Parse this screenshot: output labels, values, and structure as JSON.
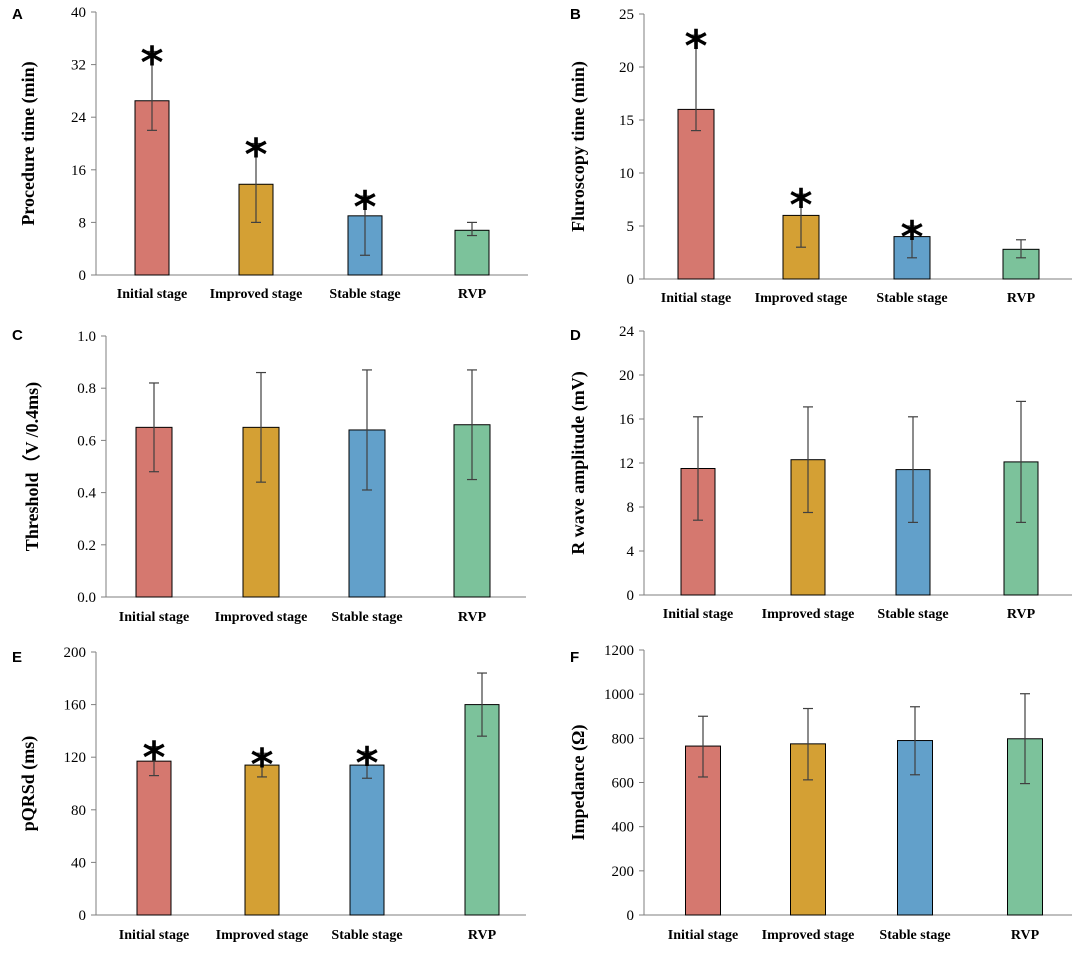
{
  "colors": {
    "Initial stage": "#d5786f",
    "Improved stage": "#d4a034",
    "Stable stage": "#62a0ca",
    "RVP": "#7cc29b"
  },
  "significance_marker": "*",
  "chart_data": [
    {
      "panel": "A",
      "type": "bar",
      "categories": [
        "Initial stage",
        "Improved stage",
        "Stable stage",
        "RVP"
      ],
      "values": [
        26.5,
        13.8,
        9.0,
        6.8
      ],
      "error_low": [
        22.0,
        8.0,
        3.0,
        6.0
      ],
      "error_high": [
        34.0,
        20.0,
        12.0,
        8.0
      ],
      "significant": [
        true,
        true,
        true,
        false
      ],
      "ylabel": "Procedure time (min)",
      "ylim": [
        0,
        40
      ],
      "yticks": [
        0,
        8,
        16,
        24,
        32,
        40
      ],
      "ytick_labels": [
        "0",
        "8",
        "16",
        "24",
        "32",
        "40"
      ]
    },
    {
      "panel": "B",
      "type": "bar",
      "categories": [
        "Initial stage",
        "Improved stage",
        "Stable stage",
        "RVP"
      ],
      "values": [
        16.0,
        6.0,
        4.0,
        2.8
      ],
      "error_low": [
        14.0,
        3.0,
        2.0,
        2.0
      ],
      "error_high": [
        23.0,
        8.0,
        5.0,
        3.7
      ],
      "significant": [
        true,
        true,
        true,
        false
      ],
      "ylabel": "Fluroscopy time (min)",
      "ylim": [
        0,
        25
      ],
      "yticks": [
        0,
        5,
        10,
        15,
        20,
        25
      ],
      "ytick_labels": [
        "0",
        "5",
        "10",
        "15",
        "20",
        "25"
      ]
    },
    {
      "panel": "C",
      "type": "bar",
      "categories": [
        "Initial stage",
        "Improved stage",
        "Stable stage",
        "RVP"
      ],
      "values": [
        0.65,
        0.65,
        0.64,
        0.66
      ],
      "error_low": [
        0.48,
        0.44,
        0.41,
        0.45
      ],
      "error_high": [
        0.82,
        0.86,
        0.87,
        0.87
      ],
      "significant": [
        false,
        false,
        false,
        false
      ],
      "ylabel": "Threshold（V /0.4ms)",
      "ylim": [
        0,
        1.0
      ],
      "yticks": [
        0,
        0.2,
        0.4,
        0.6,
        0.8,
        1.0
      ],
      "ytick_labels": [
        "0.0",
        "0.2",
        "0.4",
        "0.6",
        "0.8",
        "1.0"
      ]
    },
    {
      "panel": "D",
      "type": "bar",
      "categories": [
        "Initial stage",
        "Improved stage",
        "Stable stage",
        "RVP"
      ],
      "values": [
        11.5,
        12.3,
        11.4,
        12.1
      ],
      "error_low": [
        6.8,
        7.5,
        6.6,
        6.6
      ],
      "error_high": [
        16.2,
        17.1,
        16.2,
        17.6
      ],
      "significant": [
        false,
        false,
        false,
        false
      ],
      "ylabel": "R wave amplitude (mV)",
      "ylim": [
        0,
        24
      ],
      "yticks": [
        0,
        4,
        8,
        12,
        16,
        20,
        24
      ],
      "ytick_labels": [
        "0",
        "4",
        "8",
        "12",
        "16",
        "20",
        "24"
      ]
    },
    {
      "panel": "E",
      "type": "bar",
      "categories": [
        "Initial stage",
        "Improved stage",
        "Stable stage",
        "RVP"
      ],
      "values": [
        117,
        114,
        114,
        160
      ],
      "error_low": [
        106,
        105,
        104,
        136
      ],
      "error_high": [
        128,
        123,
        124,
        184
      ],
      "significant": [
        true,
        true,
        true,
        false
      ],
      "ylabel": "pQRSd (ms)",
      "ylim": [
        0,
        200
      ],
      "yticks": [
        0,
        40,
        80,
        120,
        160,
        200
      ],
      "ytick_labels": [
        "0",
        "40",
        "80",
        "120",
        "160",
        "200"
      ]
    },
    {
      "panel": "F",
      "type": "bar",
      "categories": [
        "Initial stage",
        "Improved stage",
        "Stable stage",
        "RVP"
      ],
      "values": [
        765,
        775,
        790,
        798
      ],
      "error_low": [
        625,
        612,
        635,
        595
      ],
      "error_high": [
        900,
        935,
        943,
        1002
      ],
      "significant": [
        false,
        false,
        false,
        false
      ],
      "ylabel": "Impedance (Ω)",
      "ylim": [
        0,
        1200
      ],
      "yticks": [
        0,
        200,
        400,
        600,
        800,
        1000,
        1200
      ],
      "ytick_labels": [
        "0",
        "200",
        "400",
        "600",
        "800",
        "1000",
        "1200"
      ]
    }
  ]
}
